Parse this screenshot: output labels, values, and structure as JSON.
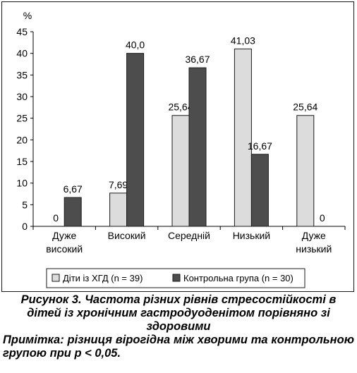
{
  "chart_data": {
    "type": "bar",
    "ylabel": "%",
    "ylim": [
      0,
      45
    ],
    "yticks": [
      "0",
      "5",
      "10",
      "15",
      "20",
      "25",
      "30",
      "35",
      "40",
      "45"
    ],
    "categories": [
      [
        "Дуже",
        "високий"
      ],
      [
        "Високий"
      ],
      [
        "Середній"
      ],
      [
        "Низький"
      ],
      [
        "Дуже",
        "низький"
      ]
    ],
    "series": [
      {
        "name": "Діти із ХГД (n = 39)",
        "color": "#dcdcdc",
        "values": [
          0,
          7.69,
          25.64,
          41.03,
          25.64
        ],
        "labels": [
          "0",
          "7,69",
          "25,64",
          "41,03",
          "25,64"
        ]
      },
      {
        "name": "Контрольна група (n = 30)",
        "color": "#4d4d4d",
        "values": [
          6.67,
          40.0,
          36.67,
          16.67,
          0
        ],
        "labels": [
          "6,67",
          "40,0",
          "36,67",
          "16,67",
          "0"
        ]
      }
    ],
    "legend_position": "bottom",
    "grid": false
  },
  "caption": {
    "title": "Рисунок 3. Частота різних рівнів стресостійкості в дітей із хронічним гастродуоденітом порівняно зі здоровими",
    "note": "Примітка: різниця вірогідна між хворими та контрольною групою при р < 0,05."
  }
}
